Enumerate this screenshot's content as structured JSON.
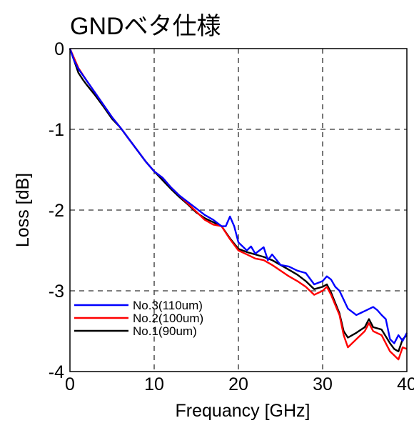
{
  "chart_data": {
    "type": "line",
    "title": "GNDベタ仕様",
    "xlabel": "Frequancy [GHz]",
    "ylabel": "Loss [dB]",
    "xlim": [
      0,
      40
    ],
    "ylim": [
      -4,
      0
    ],
    "xticks": [
      0,
      10,
      20,
      30,
      40
    ],
    "yticks": [
      0,
      -1,
      -2,
      -3,
      -4
    ],
    "grid": "dashed",
    "legend_position": "bottom-left",
    "series": [
      {
        "name": "No.3(110um)",
        "color": "#0000ff",
        "x": [
          0,
          0.5,
          1,
          2,
          3,
          4,
          5,
          6,
          7,
          8,
          9,
          10,
          11,
          12,
          13,
          14,
          15,
          16,
          17,
          18,
          18.5,
          19,
          19.5,
          20,
          21,
          21.5,
          22,
          23,
          23.5,
          24,
          25,
          26,
          27,
          28,
          29,
          30,
          30.5,
          31,
          31.5,
          32,
          33,
          34,
          35,
          36,
          36.5,
          37,
          37.5,
          38,
          38.5,
          39,
          39.5,
          40
        ],
        "y": [
          0,
          -0.15,
          -0.25,
          -0.4,
          -0.55,
          -0.7,
          -0.85,
          -0.98,
          -1.12,
          -1.26,
          -1.4,
          -1.52,
          -1.6,
          -1.72,
          -1.82,
          -1.9,
          -1.98,
          -2.06,
          -2.12,
          -2.2,
          -2.2,
          -2.08,
          -2.2,
          -2.4,
          -2.5,
          -2.45,
          -2.54,
          -2.46,
          -2.62,
          -2.55,
          -2.68,
          -2.7,
          -2.75,
          -2.78,
          -2.92,
          -2.88,
          -2.82,
          -2.86,
          -2.95,
          -3.0,
          -3.22,
          -3.3,
          -3.25,
          -3.2,
          -3.24,
          -3.3,
          -3.35,
          -3.6,
          -3.65,
          -3.55,
          -3.62,
          -3.52
        ]
      },
      {
        "name": "No.2(100um)",
        "color": "#ff0000",
        "x": [
          0,
          0.5,
          1,
          2,
          3,
          4,
          5,
          6,
          7,
          8,
          9,
          10,
          11,
          12,
          13,
          14,
          15,
          16,
          17,
          18,
          19,
          20,
          21,
          22,
          23,
          24,
          25,
          26,
          27,
          28,
          29,
          30,
          30.5,
          31,
          32,
          32.5,
          33,
          34,
          35,
          35.5,
          36,
          37,
          38,
          38.5,
          39,
          39.5,
          40
        ],
        "y": [
          0,
          -0.12,
          -0.24,
          -0.4,
          -0.55,
          -0.7,
          -0.85,
          -0.98,
          -1.12,
          -1.26,
          -1.4,
          -1.52,
          -1.6,
          -1.72,
          -1.82,
          -1.92,
          -2.02,
          -2.12,
          -2.18,
          -2.2,
          -2.36,
          -2.5,
          -2.55,
          -2.6,
          -2.62,
          -2.68,
          -2.75,
          -2.82,
          -2.88,
          -2.95,
          -3.05,
          -3.0,
          -2.95,
          -3.05,
          -3.3,
          -3.55,
          -3.7,
          -3.6,
          -3.5,
          -3.4,
          -3.5,
          -3.55,
          -3.75,
          -3.8,
          -3.85,
          -3.7,
          -3.72
        ]
      },
      {
        "name": "No.1(90um)",
        "color": "#000000",
        "x": [
          0,
          0.5,
          1,
          1.5,
          2,
          3,
          4,
          5,
          6,
          7,
          8,
          9,
          10,
          11,
          12,
          13,
          14,
          15,
          16,
          17,
          18,
          19,
          20,
          21,
          22,
          23,
          24,
          25,
          26,
          27,
          28,
          29,
          30,
          30.5,
          31,
          32,
          32.5,
          33,
          34,
          35,
          35.5,
          36,
          37,
          38,
          38.5,
          39,
          39.5,
          40
        ],
        "y": [
          0,
          -0.15,
          -0.3,
          -0.38,
          -0.45,
          -0.58,
          -0.72,
          -0.87,
          -0.98,
          -1.12,
          -1.26,
          -1.4,
          -1.52,
          -1.63,
          -1.74,
          -1.84,
          -1.93,
          -2.03,
          -2.1,
          -2.15,
          -2.2,
          -2.35,
          -2.48,
          -2.52,
          -2.55,
          -2.58,
          -2.62,
          -2.68,
          -2.74,
          -2.8,
          -2.88,
          -2.98,
          -2.95,
          -2.92,
          -3.02,
          -3.28,
          -3.5,
          -3.58,
          -3.52,
          -3.45,
          -3.35,
          -3.45,
          -3.48,
          -3.65,
          -3.72,
          -3.75,
          -3.6,
          -3.55
        ]
      }
    ]
  }
}
